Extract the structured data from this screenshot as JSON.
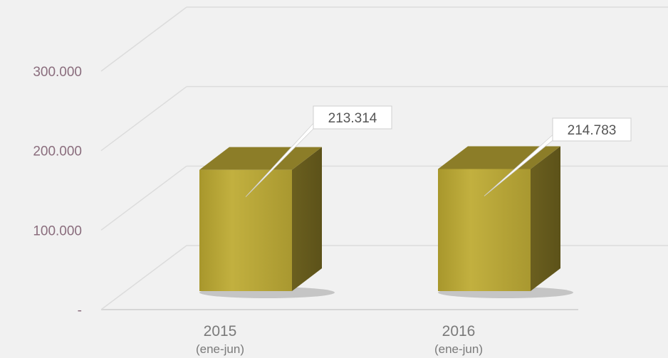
{
  "chart_data": {
    "type": "bar",
    "categories": [
      "2015",
      "2016"
    ],
    "category_sublabels": [
      "(ene-jun)",
      "(ene-jun)"
    ],
    "values": [
      213314,
      214783
    ],
    "data_labels": [
      "213.314",
      "214.783"
    ],
    "y_ticks": [
      {
        "value": 0,
        "label": "-"
      },
      {
        "value": 100000,
        "label": "100.000"
      },
      {
        "value": 200000,
        "label": "200.000"
      },
      {
        "value": 300000,
        "label": "300.000"
      }
    ],
    "ylim": [
      0,
      300000
    ],
    "style": "3d-column",
    "grid": true,
    "legend": "none",
    "colors": {
      "bar_front": "#b8a638",
      "bar_side": "#6e6220",
      "bar_top": "#8c7d28",
      "tick_y": "#8a6d7d",
      "tick_x": "#7a7a7a",
      "grid": "#dcdcdc",
      "background": "#f1f1f1"
    }
  }
}
